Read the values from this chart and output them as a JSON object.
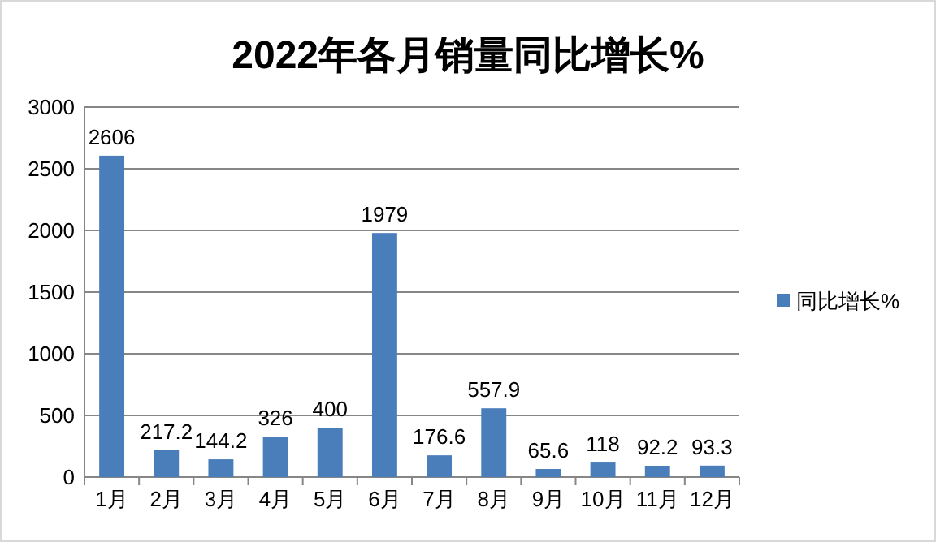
{
  "chart_data": {
    "type": "bar",
    "title": "2022年各月销量同比增长%",
    "categories": [
      "1月",
      "2月",
      "3月",
      "4月",
      "5月",
      "6月",
      "7月",
      "8月",
      "9月",
      "10月",
      "11月",
      "12月"
    ],
    "series": [
      {
        "name": "同比增长%",
        "color": "#4a7ebb",
        "values": [
          2606,
          217.2,
          144.2,
          326,
          400,
          1979,
          176.6,
          557.9,
          65.6,
          118,
          92.2,
          93.3
        ]
      }
    ],
    "ylim": [
      0,
      3000
    ],
    "yticks": [
      0,
      500,
      1000,
      1500,
      2000,
      2500,
      3000
    ],
    "grid": "y",
    "legend": "right",
    "data_labels": true
  }
}
